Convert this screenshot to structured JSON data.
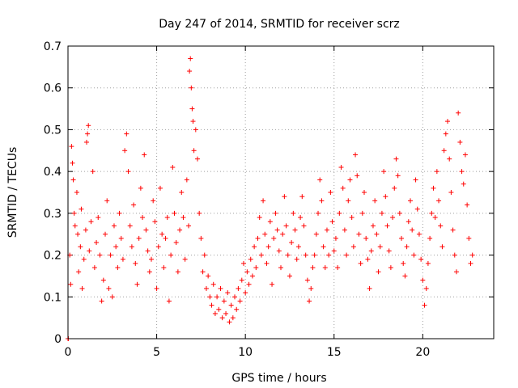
{
  "chart_data": {
    "type": "scatter",
    "title": "Day 247 of 2014, SRMTID for receiver scrz",
    "xlabel": "GPS time / hours",
    "ylabel": "SRMTID / TECUs",
    "xlim": [
      0,
      24
    ],
    "ylim": [
      0,
      0.7
    ],
    "xticks": [
      0,
      5,
      10,
      15,
      20
    ],
    "yticks": [
      0,
      0.1,
      0.2,
      0.3,
      0.4,
      0.5,
      0.6,
      0.7
    ],
    "xtick_labels": [
      "0",
      "5",
      "10",
      "15",
      "20"
    ],
    "ytick_labels": [
      "0",
      "0.1",
      "0.2",
      "0.3",
      "0.4",
      "0.5",
      "0.6",
      "0.7"
    ],
    "grid": true,
    "marker": "+",
    "color": "#ff0000",
    "series": [
      {
        "name": "SRMTID",
        "points": [
          [
            0.0,
            0.0
          ],
          [
            0.02,
            0.0
          ],
          [
            0.1,
            0.2
          ],
          [
            0.15,
            0.13
          ],
          [
            0.2,
            0.46
          ],
          [
            0.25,
            0.42
          ],
          [
            0.3,
            0.38
          ],
          [
            0.35,
            0.3
          ],
          [
            0.4,
            0.27
          ],
          [
            0.5,
            0.35
          ],
          [
            0.55,
            0.25
          ],
          [
            0.6,
            0.16
          ],
          [
            0.7,
            0.22
          ],
          [
            0.75,
            0.31
          ],
          [
            0.8,
            0.12
          ],
          [
            0.9,
            0.19
          ],
          [
            1.0,
            0.26
          ],
          [
            1.05,
            0.47
          ],
          [
            1.1,
            0.49
          ],
          [
            1.15,
            0.51
          ],
          [
            1.2,
            0.21
          ],
          [
            1.3,
            0.28
          ],
          [
            1.4,
            0.4
          ],
          [
            1.5,
            0.17
          ],
          [
            1.6,
            0.23
          ],
          [
            1.7,
            0.29
          ],
          [
            1.8,
            0.2
          ],
          [
            1.9,
            0.09
          ],
          [
            2.0,
            0.14
          ],
          [
            2.1,
            0.25
          ],
          [
            2.2,
            0.33
          ],
          [
            2.3,
            0.12
          ],
          [
            2.4,
            0.2
          ],
          [
            2.5,
            0.1
          ],
          [
            2.6,
            0.27
          ],
          [
            2.7,
            0.22
          ],
          [
            2.8,
            0.17
          ],
          [
            2.9,
            0.3
          ],
          [
            3.0,
            0.24
          ],
          [
            3.1,
            0.19
          ],
          [
            3.2,
            0.45
          ],
          [
            3.3,
            0.49
          ],
          [
            3.4,
            0.4
          ],
          [
            3.5,
            0.27
          ],
          [
            3.6,
            0.22
          ],
          [
            3.7,
            0.32
          ],
          [
            3.8,
            0.18
          ],
          [
            3.9,
            0.13
          ],
          [
            4.0,
            0.24
          ],
          [
            4.1,
            0.36
          ],
          [
            4.2,
            0.29
          ],
          [
            4.3,
            0.44
          ],
          [
            4.4,
            0.26
          ],
          [
            4.5,
            0.21
          ],
          [
            4.6,
            0.16
          ],
          [
            4.7,
            0.19
          ],
          [
            4.8,
            0.33
          ],
          [
            4.9,
            0.28
          ],
          [
            5.0,
            0.12
          ],
          [
            5.1,
            0.22
          ],
          [
            5.2,
            0.36
          ],
          [
            5.3,
            0.25
          ],
          [
            5.4,
            0.17
          ],
          [
            5.5,
            0.24
          ],
          [
            5.6,
            0.29
          ],
          [
            5.7,
            0.09
          ],
          [
            5.8,
            0.2
          ],
          [
            5.9,
            0.41
          ],
          [
            6.0,
            0.3
          ],
          [
            6.1,
            0.23
          ],
          [
            6.2,
            0.16
          ],
          [
            6.3,
            0.26
          ],
          [
            6.4,
            0.35
          ],
          [
            6.5,
            0.29
          ],
          [
            6.6,
            0.19
          ],
          [
            6.7,
            0.38
          ],
          [
            6.8,
            0.27
          ],
          [
            6.85,
            0.64
          ],
          [
            6.9,
            0.67
          ],
          [
            6.95,
            0.6
          ],
          [
            7.0,
            0.55
          ],
          [
            7.05,
            0.52
          ],
          [
            7.1,
            0.45
          ],
          [
            7.2,
            0.5
          ],
          [
            7.3,
            0.43
          ],
          [
            7.4,
            0.3
          ],
          [
            7.5,
            0.24
          ],
          [
            7.6,
            0.16
          ],
          [
            7.7,
            0.2
          ],
          [
            7.8,
            0.12
          ],
          [
            7.9,
            0.15
          ],
          [
            8.0,
            0.1
          ],
          [
            8.1,
            0.08
          ],
          [
            8.2,
            0.13
          ],
          [
            8.3,
            0.06
          ],
          [
            8.4,
            0.1
          ],
          [
            8.5,
            0.07
          ],
          [
            8.6,
            0.12
          ],
          [
            8.7,
            0.05
          ],
          [
            8.8,
            0.09
          ],
          [
            8.9,
            0.06
          ],
          [
            9.0,
            0.11
          ],
          [
            9.1,
            0.04
          ],
          [
            9.2,
            0.08
          ],
          [
            9.3,
            0.05
          ],
          [
            9.4,
            0.1
          ],
          [
            9.5,
            0.07
          ],
          [
            9.6,
            0.12
          ],
          [
            9.7,
            0.09
          ],
          [
            9.8,
            0.14
          ],
          [
            9.9,
            0.18
          ],
          [
            10.0,
            0.11
          ],
          [
            10.1,
            0.16
          ],
          [
            10.2,
            0.13
          ],
          [
            10.3,
            0.19
          ],
          [
            10.4,
            0.15
          ],
          [
            10.5,
            0.22
          ],
          [
            10.6,
            0.17
          ],
          [
            10.7,
            0.24
          ],
          [
            10.8,
            0.29
          ],
          [
            10.9,
            0.2
          ],
          [
            11.0,
            0.33
          ],
          [
            11.1,
            0.25
          ],
          [
            11.2,
            0.18
          ],
          [
            11.3,
            0.22
          ],
          [
            11.4,
            0.28
          ],
          [
            11.5,
            0.13
          ],
          [
            11.6,
            0.24
          ],
          [
            11.7,
            0.3
          ],
          [
            11.8,
            0.26
          ],
          [
            11.9,
            0.21
          ],
          [
            12.0,
            0.17
          ],
          [
            12.1,
            0.25
          ],
          [
            12.2,
            0.34
          ],
          [
            12.3,
            0.27
          ],
          [
            12.4,
            0.2
          ],
          [
            12.5,
            0.15
          ],
          [
            12.6,
            0.23
          ],
          [
            12.7,
            0.3
          ],
          [
            12.8,
            0.26
          ],
          [
            12.9,
            0.19
          ],
          [
            13.0,
            0.22
          ],
          [
            13.1,
            0.29
          ],
          [
            13.2,
            0.34
          ],
          [
            13.3,
            0.27
          ],
          [
            13.4,
            0.2
          ],
          [
            13.5,
            0.14
          ],
          [
            13.6,
            0.09
          ],
          [
            13.7,
            0.12
          ],
          [
            13.8,
            0.17
          ],
          [
            13.9,
            0.2
          ],
          [
            14.0,
            0.25
          ],
          [
            14.1,
            0.3
          ],
          [
            14.2,
            0.38
          ],
          [
            14.3,
            0.33
          ],
          [
            14.4,
            0.22
          ],
          [
            14.5,
            0.17
          ],
          [
            14.6,
            0.26
          ],
          [
            14.7,
            0.2
          ],
          [
            14.8,
            0.35
          ],
          [
            14.9,
            0.28
          ],
          [
            15.0,
            0.21
          ],
          [
            15.1,
            0.24
          ],
          [
            15.2,
            0.17
          ],
          [
            15.3,
            0.3
          ],
          [
            15.4,
            0.41
          ],
          [
            15.5,
            0.36
          ],
          [
            15.6,
            0.26
          ],
          [
            15.7,
            0.2
          ],
          [
            15.8,
            0.33
          ],
          [
            15.9,
            0.38
          ],
          [
            16.0,
            0.29
          ],
          [
            16.1,
            0.22
          ],
          [
            16.2,
            0.44
          ],
          [
            16.3,
            0.39
          ],
          [
            16.4,
            0.25
          ],
          [
            16.5,
            0.18
          ],
          [
            16.6,
            0.3
          ],
          [
            16.7,
            0.35
          ],
          [
            16.8,
            0.24
          ],
          [
            16.9,
            0.19
          ],
          [
            17.0,
            0.12
          ],
          [
            17.1,
            0.21
          ],
          [
            17.2,
            0.27
          ],
          [
            17.3,
            0.33
          ],
          [
            17.4,
            0.25
          ],
          [
            17.5,
            0.16
          ],
          [
            17.6,
            0.22
          ],
          [
            17.7,
            0.3
          ],
          [
            17.8,
            0.4
          ],
          [
            17.9,
            0.34
          ],
          [
            18.0,
            0.27
          ],
          [
            18.1,
            0.21
          ],
          [
            18.2,
            0.17
          ],
          [
            18.3,
            0.29
          ],
          [
            18.4,
            0.36
          ],
          [
            18.5,
            0.43
          ],
          [
            18.6,
            0.39
          ],
          [
            18.7,
            0.3
          ],
          [
            18.8,
            0.24
          ],
          [
            18.9,
            0.18
          ],
          [
            19.0,
            0.15
          ],
          [
            19.1,
            0.22
          ],
          [
            19.2,
            0.28
          ],
          [
            19.3,
            0.33
          ],
          [
            19.4,
            0.26
          ],
          [
            19.5,
            0.2
          ],
          [
            19.6,
            0.38
          ],
          [
            19.7,
            0.31
          ],
          [
            19.8,
            0.25
          ],
          [
            19.9,
            0.19
          ],
          [
            20.0,
            0.14
          ],
          [
            20.1,
            0.08
          ],
          [
            20.2,
            0.12
          ],
          [
            20.3,
            0.18
          ],
          [
            20.4,
            0.24
          ],
          [
            20.5,
            0.3
          ],
          [
            20.6,
            0.36
          ],
          [
            20.7,
            0.29
          ],
          [
            20.8,
            0.4
          ],
          [
            20.9,
            0.33
          ],
          [
            21.0,
            0.27
          ],
          [
            21.1,
            0.22
          ],
          [
            21.2,
            0.45
          ],
          [
            21.3,
            0.49
          ],
          [
            21.4,
            0.52
          ],
          [
            21.5,
            0.43
          ],
          [
            21.6,
            0.35
          ],
          [
            21.7,
            0.26
          ],
          [
            21.8,
            0.2
          ],
          [
            21.9,
            0.16
          ],
          [
            22.0,
            0.54
          ],
          [
            22.1,
            0.47
          ],
          [
            22.2,
            0.4
          ],
          [
            22.3,
            0.37
          ],
          [
            22.4,
            0.44
          ],
          [
            22.5,
            0.32
          ],
          [
            22.6,
            0.24
          ],
          [
            22.7,
            0.18
          ],
          [
            22.8,
            0.2
          ]
        ]
      }
    ]
  }
}
